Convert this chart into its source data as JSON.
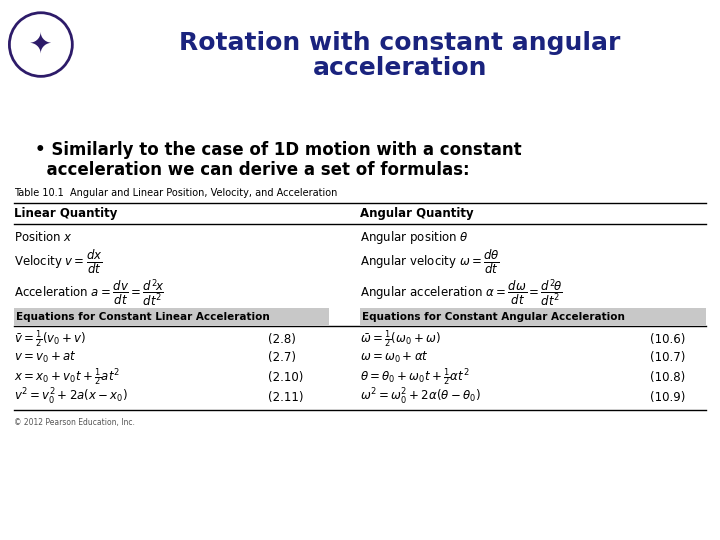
{
  "title_line1": "Rotation with constant angular",
  "title_line2": "acceleration",
  "title_color": "#1a237e",
  "title_fontsize": 18,
  "bullet_line1": "• Similarly to the case of 1D motion with a constant",
  "bullet_line2": "  acceleration we can derive a set of formulas:",
  "bullet_fontsize": 12,
  "table_caption": "Table 10.1  Angular and Linear Position, Velocity, and Acceleration",
  "col_header_left": "Linear Quantity",
  "col_header_right": "Angular Quantity",
  "bg_color": "#ffffff",
  "footer": "© 2012 Pearson Education, Inc.",
  "eq_header_bg": "#c8c8c8",
  "eq_header_left": "Equations for Constant Linear Acceleration",
  "eq_header_right": "Equations for Constant Angular Acceleration"
}
